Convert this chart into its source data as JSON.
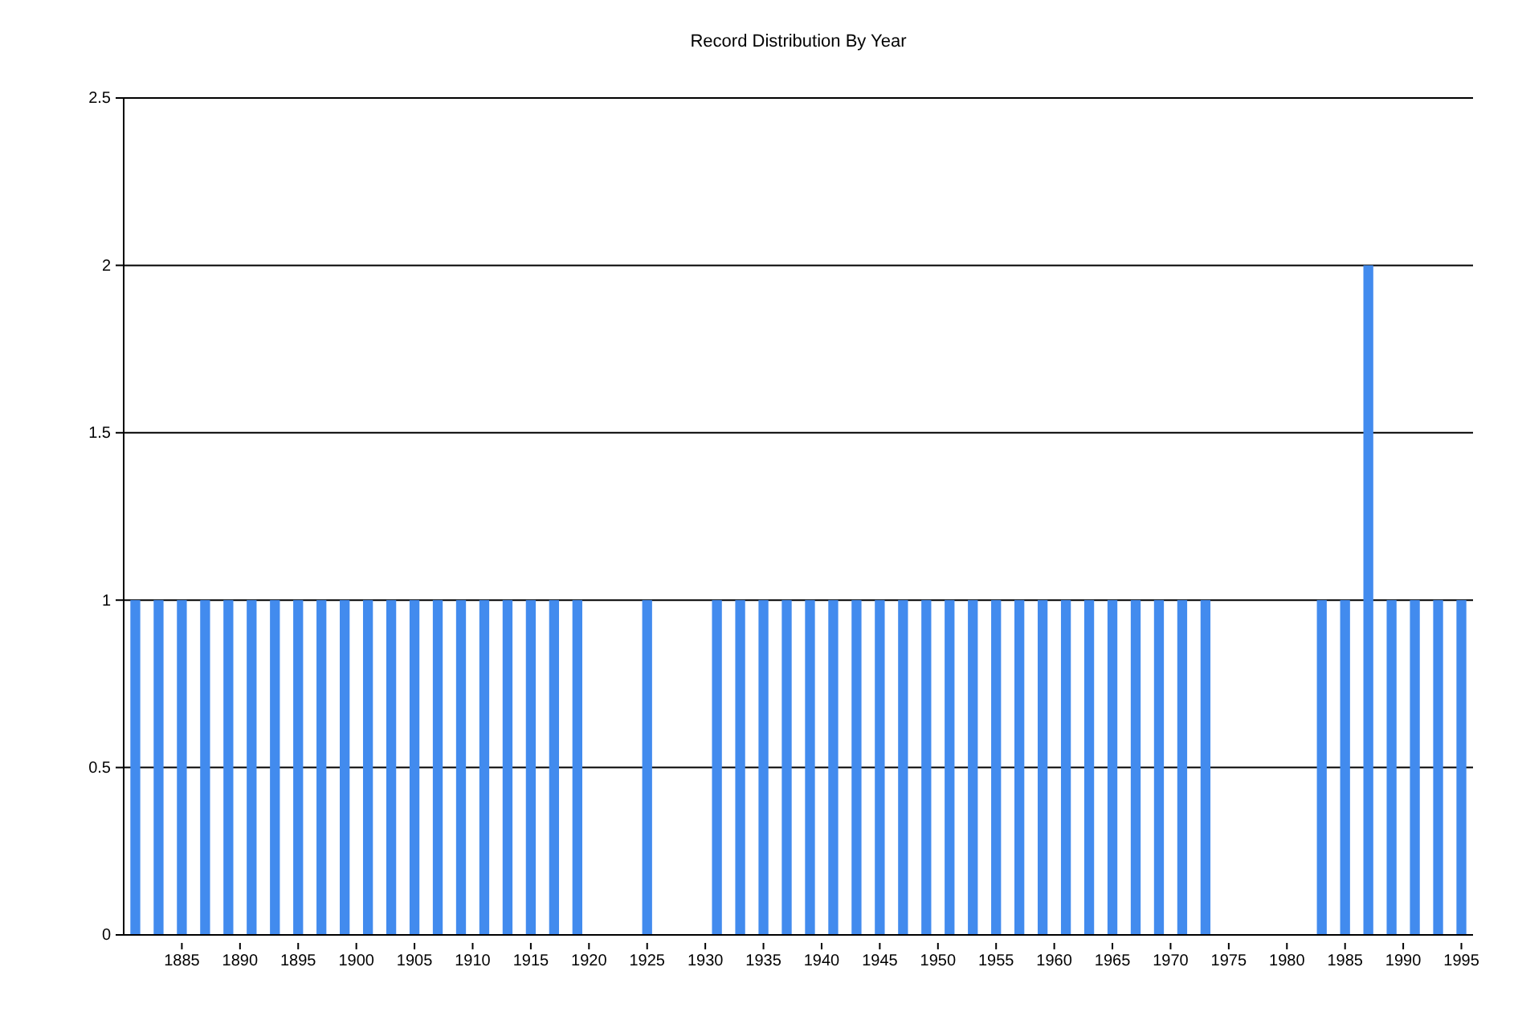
{
  "chart_data": {
    "type": "bar",
    "title": "Record Distribution By Year",
    "x": [
      1881,
      1883,
      1885,
      1887,
      1889,
      1891,
      1893,
      1895,
      1897,
      1899,
      1901,
      1903,
      1905,
      1907,
      1909,
      1911,
      1913,
      1915,
      1917,
      1919,
      1925,
      1931,
      1933,
      1935,
      1937,
      1939,
      1941,
      1943,
      1945,
      1947,
      1949,
      1951,
      1953,
      1955,
      1957,
      1959,
      1961,
      1963,
      1965,
      1967,
      1969,
      1971,
      1973,
      1983,
      1985,
      1987,
      1989,
      1991,
      1993,
      1995
    ],
    "values": [
      1,
      1,
      1,
      1,
      1,
      1,
      1,
      1,
      1,
      1,
      1,
      1,
      1,
      1,
      1,
      1,
      1,
      1,
      1,
      1,
      1,
      1,
      1,
      1,
      1,
      1,
      1,
      1,
      1,
      1,
      1,
      1,
      1,
      1,
      1,
      1,
      1,
      1,
      1,
      1,
      1,
      1,
      1,
      1,
      1,
      2,
      1,
      1,
      1,
      1
    ],
    "color": "#428bee",
    "xlim": [
      1880,
      1996
    ],
    "xticks": [
      1885,
      1890,
      1895,
      1900,
      1905,
      1910,
      1915,
      1920,
      1925,
      1930,
      1935,
      1940,
      1945,
      1950,
      1955,
      1960,
      1965,
      1970,
      1975,
      1980,
      1985,
      1990,
      1995
    ],
    "ylim": [
      0,
      2.5
    ],
    "yticks": [
      0,
      0.5,
      1,
      1.5,
      2,
      2.5
    ],
    "grid": "y"
  }
}
